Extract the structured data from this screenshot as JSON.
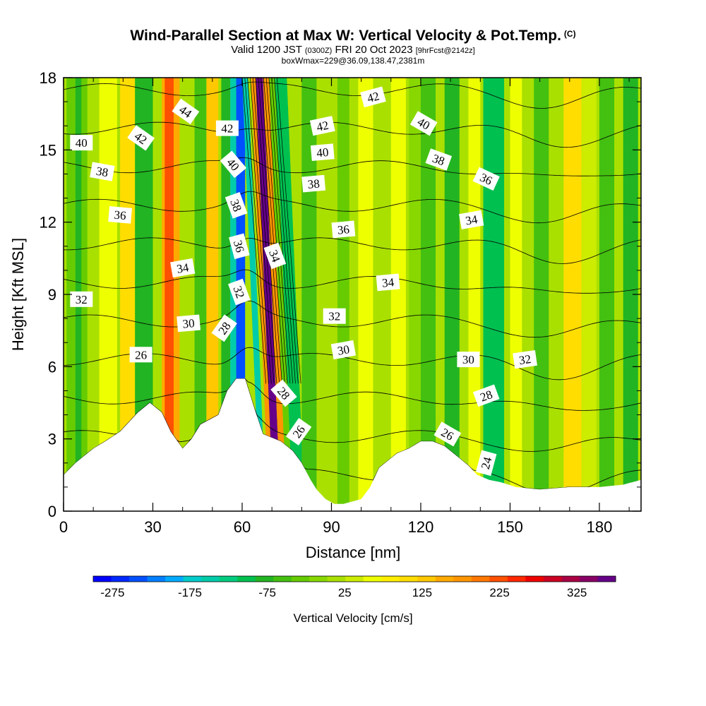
{
  "title": {
    "main": "Wind-Parallel Section at Max W: Vertical Velocity & Pot.Temp.",
    "copyright": "(C)",
    "valid_prefix": "Valid 1200 JST",
    "valid_utc": "(0300Z)",
    "valid_date": "FRI 20 Oct 2023",
    "forecast": "[9hrFcst@2142z]",
    "box_info": "boxWmax=229@36.09,138.47,2381m"
  },
  "colors": {
    "terrain": "#ffffff",
    "contour": "#000000",
    "scale": [
      "#0000ff",
      "#0028ff",
      "#0050ff",
      "#0080ff",
      "#00aaff",
      "#00cccc",
      "#00ccaa",
      "#00cc80",
      "#00c050",
      "#22b422",
      "#44c010",
      "#66cc00",
      "#88d800",
      "#aae000",
      "#ccec00",
      "#eeff00",
      "#ffee00",
      "#ffdd00",
      "#ffc800",
      "#ffaa00",
      "#ff9600",
      "#ff7800",
      "#ff5000",
      "#ff2800",
      "#ee0000",
      "#cc0022",
      "#aa0044",
      "#880066",
      "#660088"
    ]
  },
  "chart_data": {
    "type": "heatmap",
    "xlabel": "Distance [nm]",
    "ylabel": "Height [Kft MSL]",
    "xlim": [
      0,
      194
    ],
    "ylim": [
      0,
      18
    ],
    "xticks": [
      0,
      30,
      60,
      90,
      120,
      150,
      180
    ],
    "yticks": [
      0,
      3,
      6,
      9,
      12,
      15,
      18
    ],
    "colorbar": {
      "label": "Vertical Velocity [cm/s]",
      "min": -300,
      "max": 375,
      "tick_values": [
        -275,
        -175,
        -75,
        25,
        125,
        225,
        325
      ]
    },
    "terrain": [
      [
        0,
        1.5
      ],
      [
        4,
        2.0
      ],
      [
        7,
        2.3
      ],
      [
        10,
        2.6
      ],
      [
        14,
        2.9
      ],
      [
        19,
        3.3
      ],
      [
        22,
        3.7
      ],
      [
        25,
        4.1
      ],
      [
        29,
        4.5
      ],
      [
        33,
        4.1
      ],
      [
        36,
        3.3
      ],
      [
        40,
        2.6
      ],
      [
        43,
        3.0
      ],
      [
        46,
        3.6
      ],
      [
        52,
        4.0
      ],
      [
        55,
        5.0
      ],
      [
        58,
        5.5
      ],
      [
        61,
        5.5
      ],
      [
        64,
        4.3
      ],
      [
        67,
        3.2
      ],
      [
        73,
        2.9
      ],
      [
        77,
        2.5
      ],
      [
        80,
        2.0
      ],
      [
        83,
        1.3
      ],
      [
        85,
        0.9
      ],
      [
        88,
        0.5
      ],
      [
        91,
        0.3
      ],
      [
        94,
        0.3
      ],
      [
        97,
        0.4
      ],
      [
        100,
        0.5
      ],
      [
        103,
        1.0
      ],
      [
        106,
        1.8
      ],
      [
        112,
        2.4
      ],
      [
        116,
        2.6
      ],
      [
        120,
        2.9
      ],
      [
        124,
        2.9
      ],
      [
        128,
        2.7
      ],
      [
        132,
        2.3
      ],
      [
        136,
        1.9
      ],
      [
        139,
        1.5
      ],
      [
        143,
        1.3
      ],
      [
        147,
        1.2
      ],
      [
        152,
        1.0
      ],
      [
        160,
        0.9
      ],
      [
        170,
        1.0
      ],
      [
        180,
        1.0
      ],
      [
        188,
        1.1
      ],
      [
        194,
        1.3
      ]
    ],
    "velocity_bands": [
      {
        "x": [
          1,
          8
        ],
        "w": -40
      },
      {
        "x": [
          4,
          6
        ],
        "w": -80
      },
      {
        "x": [
          12,
          18
        ],
        "w": 60
      },
      {
        "x": [
          19,
          24
        ],
        "w": 100
      },
      {
        "x": [
          24,
          30
        ],
        "w": -70
      },
      {
        "x": [
          30,
          34
        ],
        "w": 20
      },
      {
        "x": [
          33,
          39
        ],
        "w": 160
      },
      {
        "x": [
          34,
          37
        ],
        "w": 230
      },
      {
        "x": [
          39,
          45
        ],
        "w": 20
      },
      {
        "x": [
          44,
          48
        ],
        "w": -60
      },
      {
        "x": [
          48,
          52
        ],
        "w": 140
      },
      {
        "x": [
          53,
          56
        ],
        "w": -90
      },
      {
        "x": [
          56,
          58
        ],
        "w": -150
      },
      {
        "x": [
          58,
          61
        ],
        "w": -245
      },
      {
        "x": [
          61,
          63
        ],
        "w": -150
      },
      {
        "x": [
          64,
          66
        ],
        "w": 180
      },
      {
        "x": [
          65.5,
          68
        ],
        "w": 360
      },
      {
        "x": [
          68,
          70
        ],
        "w": 180
      },
      {
        "x": [
          70,
          72
        ],
        "w": -40
      },
      {
        "x": [
          72,
          76
        ],
        "w": -100
      },
      {
        "x": [
          80,
          85
        ],
        "w": -60
      },
      {
        "x": [
          87,
          90
        ],
        "w": 20
      },
      {
        "x": [
          92,
          96
        ],
        "w": -30
      },
      {
        "x": [
          99,
          104
        ],
        "w": 60
      },
      {
        "x": [
          104,
          107
        ],
        "w": 10
      },
      {
        "x": [
          110,
          115
        ],
        "w": 60
      },
      {
        "x": [
          116,
          120
        ],
        "w": -20
      },
      {
        "x": [
          120,
          125
        ],
        "w": -60
      },
      {
        "x": [
          128,
          133
        ],
        "w": -90
      },
      {
        "x": [
          136,
          140
        ],
        "w": 60
      },
      {
        "x": [
          141,
          148
        ],
        "w": -110
      },
      {
        "x": [
          150,
          154
        ],
        "w": 60
      },
      {
        "x": [
          158,
          163
        ],
        "w": -50
      },
      {
        "x": [
          168,
          174
        ],
        "w": 110
      },
      {
        "x": [
          174,
          179
        ],
        "w": 30
      },
      {
        "x": [
          180,
          185
        ],
        "w": -60
      },
      {
        "x": [
          188,
          193
        ],
        "w": -80
      }
    ],
    "contour_levels": [
      24,
      26,
      28,
      30,
      32,
      34,
      36,
      38,
      40,
      42,
      44
    ],
    "contour_labels": [
      {
        "text": "44",
        "x": 41,
        "y": 16.6,
        "angle": 35
      },
      {
        "text": "42",
        "x": 26,
        "y": 15.5,
        "angle": 35
      },
      {
        "text": "42",
        "x": 55,
        "y": 15.9,
        "angle": 0
      },
      {
        "text": "42",
        "x": 87,
        "y": 16.0,
        "angle": -12
      },
      {
        "text": "42",
        "x": 104,
        "y": 17.2,
        "angle": -15
      },
      {
        "text": "40",
        "x": 6,
        "y": 15.3,
        "angle": 0
      },
      {
        "text": "40",
        "x": 57,
        "y": 14.4,
        "angle": 50
      },
      {
        "text": "40",
        "x": 87,
        "y": 14.9,
        "angle": -5
      },
      {
        "text": "40",
        "x": 121,
        "y": 16.1,
        "angle": 30
      },
      {
        "text": "38",
        "x": 13,
        "y": 14.1,
        "angle": 10
      },
      {
        "text": "38",
        "x": 58,
        "y": 12.7,
        "angle": 70
      },
      {
        "text": "38",
        "x": 84,
        "y": 13.6,
        "angle": -5
      },
      {
        "text": "38",
        "x": 126,
        "y": 14.6,
        "angle": 20
      },
      {
        "text": "36",
        "x": 19,
        "y": 12.3,
        "angle": 5
      },
      {
        "text": "36",
        "x": 59,
        "y": 11.0,
        "angle": 75
      },
      {
        "text": "36",
        "x": 94,
        "y": 11.7,
        "angle": -5
      },
      {
        "text": "36",
        "x": 142,
        "y": 13.8,
        "angle": 25
      },
      {
        "text": "34",
        "x": 40,
        "y": 10.1,
        "angle": -10
      },
      {
        "text": "34",
        "x": 71,
        "y": 10.6,
        "angle": 70
      },
      {
        "text": "34",
        "x": 109,
        "y": 9.5,
        "angle": -5
      },
      {
        "text": "34",
        "x": 137,
        "y": 12.1,
        "angle": -10
      },
      {
        "text": "32",
        "x": 6,
        "y": 8.8,
        "angle": 0
      },
      {
        "text": "32",
        "x": 59,
        "y": 9.1,
        "angle": 70
      },
      {
        "text": "32",
        "x": 91,
        "y": 8.1,
        "angle": 0
      },
      {
        "text": "32",
        "x": 155,
        "y": 6.3,
        "angle": -8
      },
      {
        "text": "30",
        "x": 42,
        "y": 7.8,
        "angle": -5
      },
      {
        "text": "30",
        "x": 94,
        "y": 6.7,
        "angle": -10
      },
      {
        "text": "30",
        "x": 136,
        "y": 6.3,
        "angle": 0
      },
      {
        "text": "28",
        "x": 54,
        "y": 7.6,
        "angle": -55
      },
      {
        "text": "28",
        "x": 74,
        "y": 4.9,
        "angle": 50
      },
      {
        "text": "28",
        "x": 142,
        "y": 4.8,
        "angle": -20
      },
      {
        "text": "26",
        "x": 26,
        "y": 6.5,
        "angle": 0
      },
      {
        "text": "26",
        "x": 79,
        "y": 3.3,
        "angle": -55
      },
      {
        "text": "26",
        "x": 129,
        "y": 3.2,
        "angle": 30
      },
      {
        "text": "24",
        "x": 142,
        "y": 2.0,
        "angle": -75
      }
    ]
  }
}
